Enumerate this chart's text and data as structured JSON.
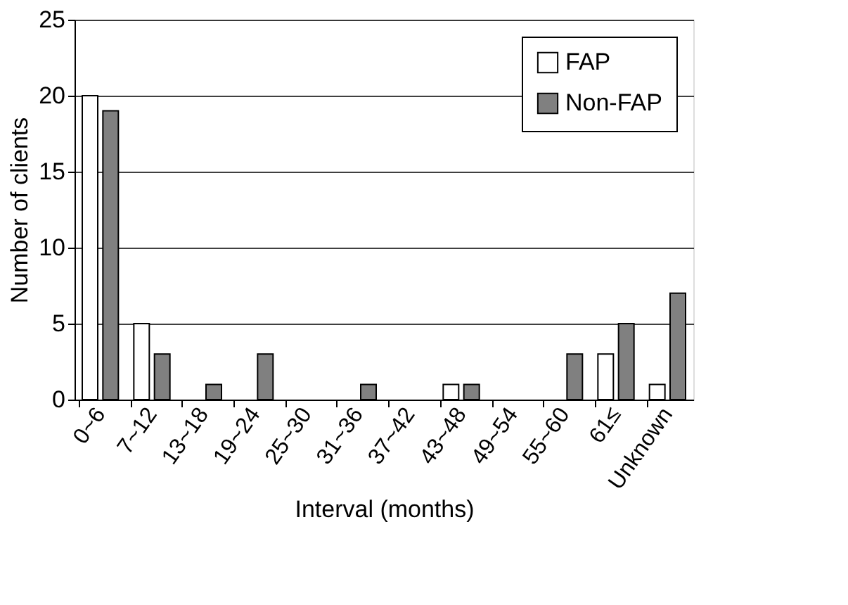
{
  "chart_data": {
    "type": "bar",
    "xlabel": "Interval (months)",
    "ylabel": "Number of clients",
    "categories": [
      "0~6",
      "7~12",
      "13~18",
      "19~24",
      "25~30",
      "31~36",
      "37~42",
      "43~48",
      "49~54",
      "55~60",
      "61≤",
      "Unknown"
    ],
    "series": [
      {
        "name": "FAP",
        "color": "#ffffff",
        "values": [
          20,
          5,
          0,
          0,
          0,
          0,
          0,
          1,
          0,
          0,
          3,
          1
        ]
      },
      {
        "name": "Non-FAP",
        "color": "#808080",
        "values": [
          19,
          3,
          1,
          3,
          0,
          1,
          0,
          1,
          0,
          3,
          5,
          7
        ]
      }
    ],
    "ylim": [
      0,
      25
    ],
    "yticks": [
      0,
      5,
      10,
      15,
      20,
      25
    ],
    "grid": "y",
    "legend": "top right"
  }
}
